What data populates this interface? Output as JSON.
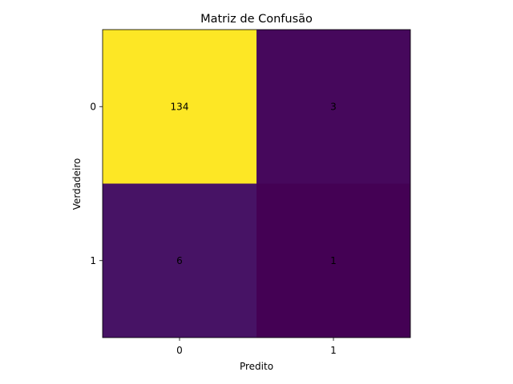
{
  "chart_data": {
    "type": "heatmap",
    "title": "Matriz de Confusão",
    "xlabel": "Predito",
    "ylabel": "Verdadeiro",
    "x_categories": [
      "0",
      "1"
    ],
    "y_categories": [
      "0",
      "1"
    ],
    "values": [
      [
        134,
        3
      ],
      [
        6,
        1
      ]
    ],
    "colormap": "viridis",
    "colors": [
      [
        "#fde725",
        "#46085c"
      ],
      [
        "#471365",
        "#440154"
      ]
    ],
    "grid": false,
    "legend": "none"
  }
}
